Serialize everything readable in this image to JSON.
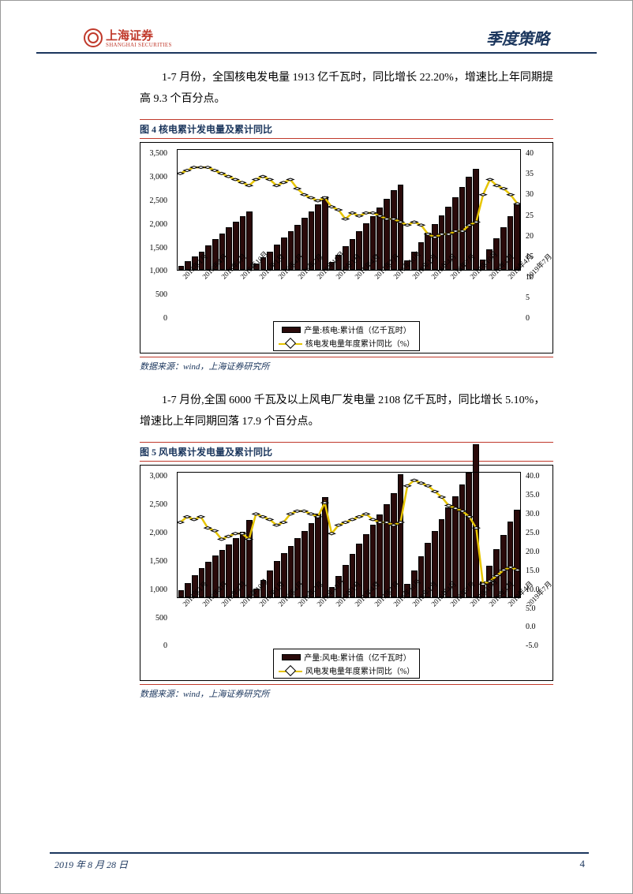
{
  "header": {
    "brand_cn": "上海证券",
    "brand_en": "SHANGHAI SECURITIES",
    "section": "季度策略"
  },
  "para1": "1-7 月份，全国核电发电量 1913 亿千瓦时，同比增长 22.20%，增速比上年同期提高 9.3 个百分点。",
  "para2": "1-7 月份,全国 6000 千瓦及以上风电厂发电量 2108 亿千瓦时，同比增长 5.10%，增速比上年同期回落 17.9 个百分点。",
  "footer": {
    "date": "2019 年 8 月 28 日",
    "page": "4"
  },
  "fig4": {
    "title": "图 4 核电累计发电量及累计同比",
    "source": "数据来源：wind，上海证券研究所",
    "legend_bar": "产量:核电:累计值（亿千瓦时）",
    "legend_line": "核电发电量年度累计同比（%）",
    "y_left_ticks": [
      "3,500",
      "3,000",
      "2,500",
      "2,000",
      "1,500",
      "1,000",
      "500",
      "0"
    ],
    "y_right_ticks": [
      "40",
      "35",
      "30",
      "25",
      "20",
      "15",
      "10",
      "5",
      "0"
    ],
    "y_left_min": 0,
    "y_left_max": 3500,
    "y_right_min": 0,
    "y_right_max": 40,
    "colors": {
      "bar": "#2a0a0a",
      "line": "#e6c400",
      "marker_fill": "#ffffff",
      "marker_stroke": "#000000",
      "axis": "#000000"
    },
    "x_labels": [
      "2015年1月",
      "2015年4月",
      "2015年7月",
      "2015年10月",
      "2016年1月",
      "2016年4月",
      "2016年7月",
      "2016年10月",
      "2017年1月",
      "2017年4月",
      "2017年7月",
      "2017年10月",
      "2018年1月",
      "2018年4月",
      "2018年7月",
      "2018年10月",
      "2019年1月",
      "2019年4月",
      "2019年7月"
    ],
    "bar_values": [
      120,
      250,
      390,
      540,
      720,
      890,
      1060,
      1230,
      1400,
      1570,
      1700,
      180,
      360,
      540,
      740,
      940,
      1130,
      1320,
      1510,
      1700,
      1910,
      2130,
      230,
      450,
      680,
      900,
      1120,
      1350,
      1570,
      1820,
      2060,
      2310,
      2480,
      270,
      530,
      800,
      1070,
      1330,
      1580,
      1830,
      2100,
      2400,
      2700,
      2940,
      300,
      600,
      910,
      1230,
      1560,
      1913
    ],
    "line_values": [
      32,
      33,
      34,
      34,
      34,
      33,
      32,
      31,
      30,
      29,
      28,
      30,
      31,
      30,
      28,
      29,
      30,
      27,
      25,
      24,
      23,
      24,
      21,
      20,
      17,
      19,
      18,
      19,
      19,
      18,
      17,
      17,
      16,
      15,
      16,
      15,
      12,
      11,
      12,
      12,
      13,
      13,
      15,
      16,
      25,
      30,
      28,
      27,
      25,
      22
    ]
  },
  "fig5": {
    "title": "图 5 风电累计发电量及累计同比",
    "source": "数据来源：wind，上海证券研究所",
    "legend_bar": "产量:风电:累计值（亿千瓦时）",
    "legend_line": "风电发电量年度累计同比（%）",
    "y_left_ticks": [
      "3,000",
      "2,500",
      "2,000",
      "1,500",
      "1,000",
      "500",
      "0"
    ],
    "y_right_ticks": [
      "40.0",
      "35.0",
      "30.0",
      "25.0",
      "20.0",
      "15.0",
      "10.0",
      "5.0",
      "0.0",
      "-5.0"
    ],
    "y_left_min": 0,
    "y_left_max": 3000,
    "y_right_min": -5,
    "y_right_max": 40,
    "colors": {
      "bar": "#2a0a0a",
      "line": "#e6c400",
      "marker_fill": "#ffffff",
      "marker_stroke": "#000000",
      "axis": "#000000"
    },
    "x_labels": [
      "2015年1月",
      "2015年4月",
      "2015年7月",
      "2015年10月",
      "2016年1月",
      "2016年4月",
      "2016年7月",
      "2016年10月",
      "2017年1月",
      "2017年4月",
      "2017年7月",
      "2017年10月",
      "2018年1月",
      "2018年4月",
      "2018年7月",
      "2018年10月",
      "2019年1月",
      "2019年4月",
      "2019年7月"
    ],
    "bar_values": [
      180,
      350,
      530,
      700,
      850,
      1000,
      1140,
      1280,
      1420,
      1580,
      1860,
      220,
      430,
      650,
      870,
      1060,
      1240,
      1420,
      1600,
      1790,
      2000,
      2410,
      260,
      520,
      790,
      1050,
      1290,
      1520,
      1750,
      1990,
      2240,
      2500,
      2950,
      330,
      650,
      980,
      1300,
      1600,
      1880,
      2150,
      2420,
      2700,
      2980,
      3660,
      380,
      760,
      1150,
      1500,
      1810,
      2108
    ],
    "line_values": [
      22,
      24,
      23,
      24,
      20,
      19,
      16,
      17,
      18,
      18,
      16,
      25,
      24,
      23,
      21,
      22,
      25,
      26,
      26,
      25,
      24,
      29,
      18,
      21,
      22,
      23,
      24,
      25,
      23,
      22,
      22,
      21,
      22,
      35,
      37,
      36,
      35,
      33,
      31,
      28,
      27,
      26,
      24,
      20,
      0,
      1,
      3,
      5,
      6,
      5
    ]
  }
}
